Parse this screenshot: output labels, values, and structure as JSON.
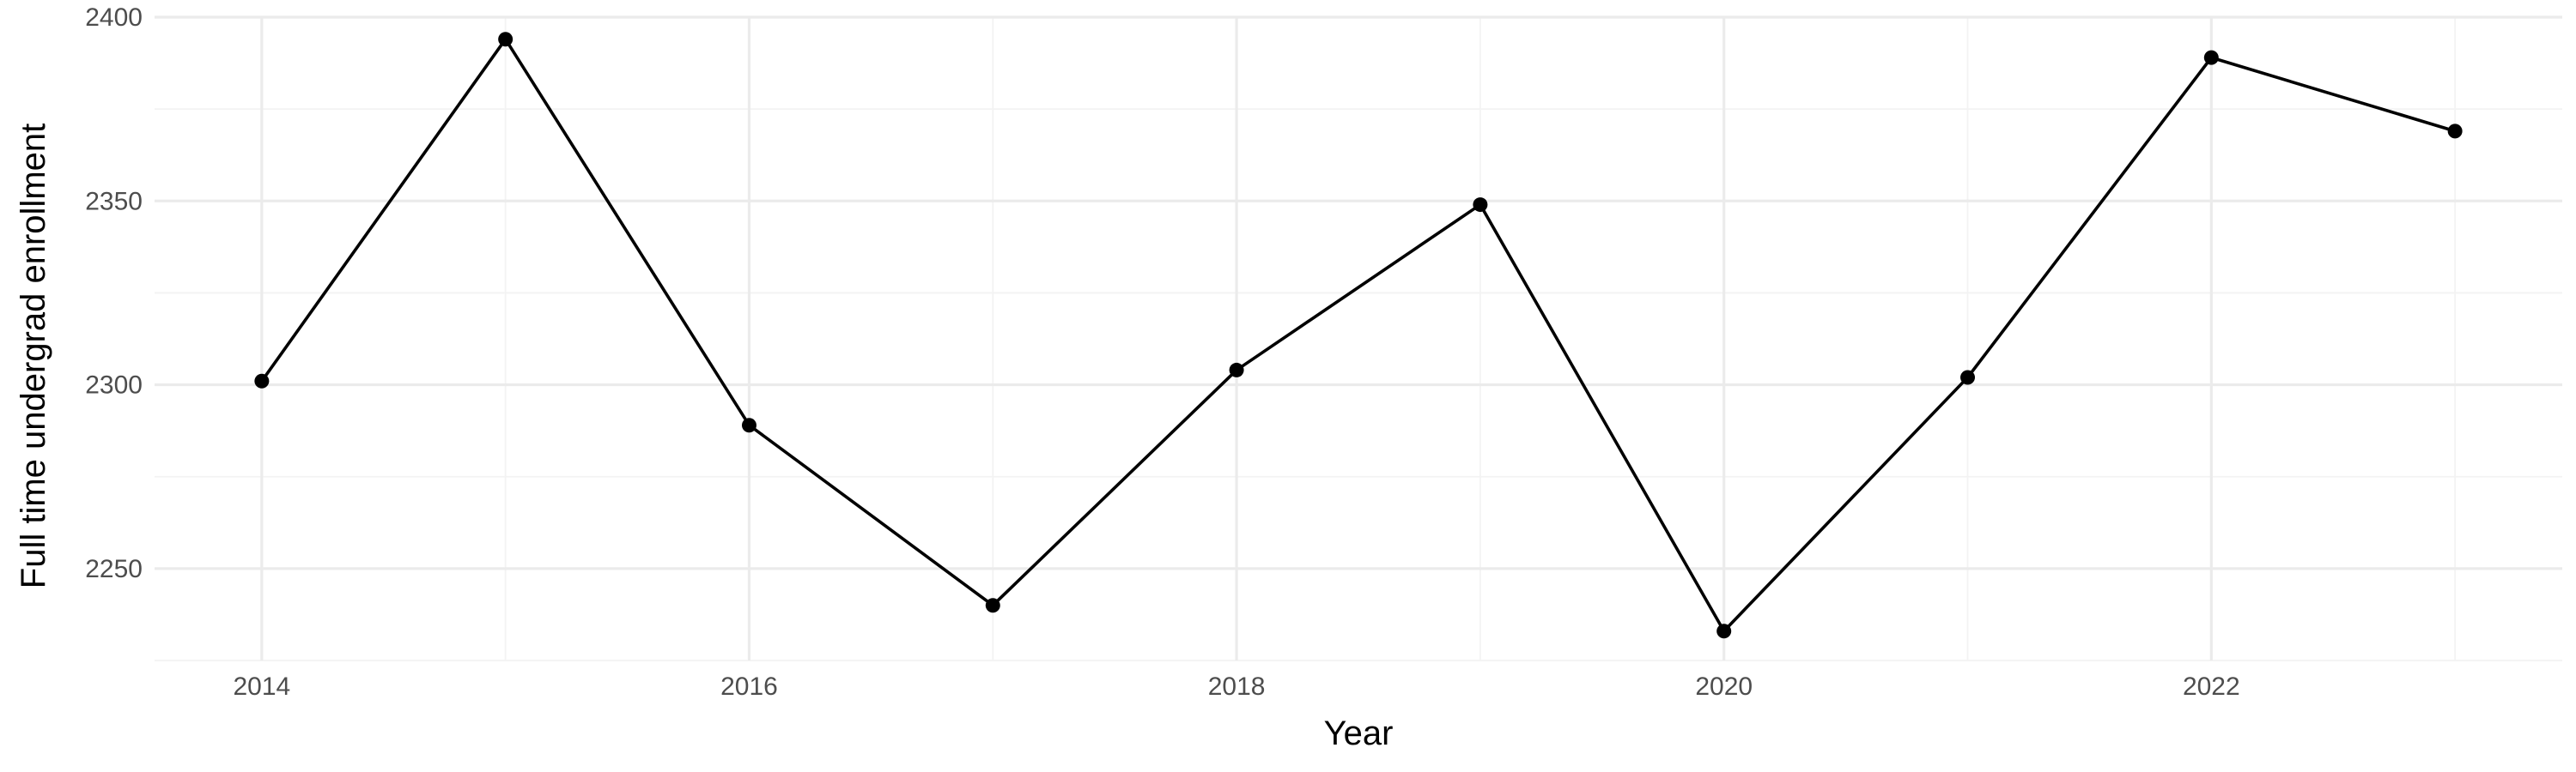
{
  "chart_data": {
    "type": "line",
    "title": "",
    "xlabel": "Year",
    "ylabel": "Full time undergrad enrollment",
    "x": [
      2014,
      2015,
      2016,
      2017,
      2018,
      2019,
      2020,
      2021,
      2022,
      2023
    ],
    "series": [
      {
        "values": [
          2301,
          2394,
          2289,
          2240,
          2304,
          2349,
          2233,
          2302,
          2389,
          2369
        ],
        "color": "#000000"
      }
    ],
    "xlim": [
      2013.56,
      2023.44
    ],
    "ylim": [
      2225,
      2400
    ],
    "x_ticks": [
      2014,
      2016,
      2018,
      2020,
      2022
    ],
    "x_minor_ticks": [
      2015,
      2017,
      2019,
      2021,
      2023
    ],
    "y_ticks": [
      2250,
      2300,
      2350,
      2400
    ],
    "y_minor_ticks": [
      2225,
      2275,
      2325,
      2375
    ],
    "grid": true,
    "legend": "none",
    "colors": {
      "line": "#000000",
      "grid_major": "#ebebeb",
      "grid_minor": "#f3f3f3",
      "tick_text": "#4d4d4d",
      "background": "#ffffff"
    }
  }
}
